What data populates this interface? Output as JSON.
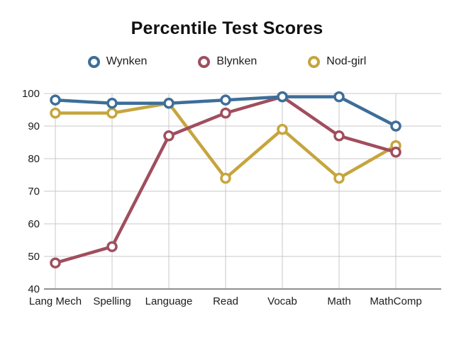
{
  "chart_data": {
    "type": "line",
    "title": "Percentile Test Scores",
    "categories": [
      "Lang Mech",
      "Spelling",
      "Language",
      "Read",
      "Vocab",
      "Math",
      "MathComp"
    ],
    "series": [
      {
        "name": "Wynken",
        "color": "#3d6e99",
        "values": [
          98,
          97,
          97,
          98,
          99,
          99,
          90
        ]
      },
      {
        "name": "Blynken",
        "color": "#a04e5e",
        "values": [
          48,
          53,
          87,
          94,
          99,
          87,
          82
        ]
      },
      {
        "name": "Nod-girl",
        "color": "#c6a53e",
        "values": [
          94,
          94,
          97,
          74,
          89,
          74,
          84
        ]
      }
    ],
    "ylim": [
      40,
      100
    ],
    "yticks": [
      40,
      50,
      60,
      70,
      80,
      90,
      100
    ],
    "grid": true,
    "legend_position": "top",
    "xlabel": "",
    "ylabel": ""
  },
  "colors": {
    "gridline": "#c9c9c9",
    "axis_line": "#8f8f8f",
    "tick_text": "#1c1c1c",
    "background": "#ffffff"
  }
}
